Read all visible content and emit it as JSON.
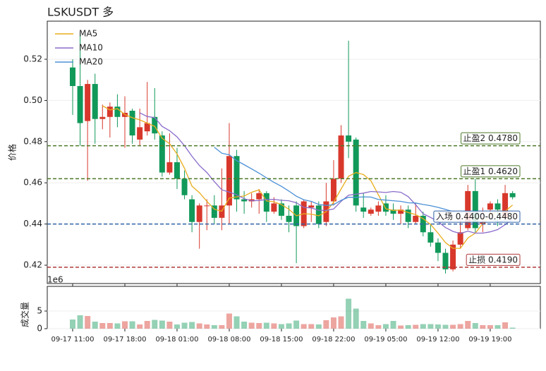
{
  "chart_data": [
    {
      "type": "candlestick",
      "title": "LSKUSDT  多",
      "ylabel": "价格",
      "up_color": "#d8382c",
      "down_color": "#11995a",
      "open": [
        0.516,
        0.507,
        0.49,
        0.508,
        0.491,
        0.492,
        0.497,
        0.492,
        0.495,
        0.481,
        0.485,
        0.492,
        0.483,
        0.465,
        0.47,
        0.462,
        0.452,
        0.441,
        0.449,
        0.449,
        0.443,
        0.449,
        0.473,
        0.452,
        0.451,
        0.452,
        0.455,
        0.446,
        0.45,
        0.444,
        0.449,
        0.439,
        0.448,
        0.449,
        0.441,
        0.451,
        0.462,
        0.483,
        0.481,
        0.448,
        0.445,
        0.446,
        0.45,
        0.447,
        0.445,
        0.447,
        0.441,
        0.444,
        0.436,
        0.431,
        0.426,
        0.418,
        0.43,
        0.438,
        0.456,
        0.44,
        0.447,
        0.45,
        0.443,
        0.455
      ],
      "high": [
        0.52,
        0.533,
        0.51,
        0.513,
        0.498,
        0.499,
        0.503,
        0.502,
        0.496,
        0.496,
        0.509,
        0.506,
        0.485,
        0.484,
        0.477,
        0.466,
        0.454,
        0.45,
        0.452,
        0.454,
        0.467,
        0.489,
        0.476,
        0.456,
        0.455,
        0.457,
        0.456,
        0.453,
        0.452,
        0.449,
        0.451,
        0.452,
        0.451,
        0.451,
        0.46,
        0.471,
        0.488,
        0.529,
        0.482,
        0.455,
        0.448,
        0.451,
        0.454,
        0.45,
        0.449,
        0.449,
        0.45,
        0.446,
        0.44,
        0.433,
        0.428,
        0.432,
        0.444,
        0.459,
        0.462,
        0.448,
        0.451,
        0.452,
        0.459,
        0.456
      ],
      "low": [
        0.493,
        0.478,
        0.461,
        0.479,
        0.486,
        0.482,
        0.487,
        0.477,
        0.479,
        0.478,
        0.483,
        0.481,
        0.463,
        0.464,
        0.457,
        0.452,
        0.436,
        0.428,
        0.437,
        0.44,
        0.437,
        0.44,
        0.446,
        0.445,
        0.448,
        0.445,
        0.441,
        0.445,
        0.442,
        0.436,
        0.421,
        0.438,
        0.441,
        0.438,
        0.439,
        0.449,
        0.46,
        0.472,
        0.446,
        0.443,
        0.444,
        0.444,
        0.444,
        0.442,
        0.44,
        0.438,
        0.44,
        0.434,
        0.429,
        0.422,
        0.416,
        0.417,
        0.428,
        0.437,
        0.436,
        0.436,
        0.443,
        0.439,
        0.442,
        0.452
      ],
      "close": [
        0.507,
        0.489,
        0.508,
        0.491,
        0.492,
        0.497,
        0.492,
        0.494,
        0.483,
        0.487,
        0.489,
        0.484,
        0.465,
        0.47,
        0.462,
        0.454,
        0.441,
        0.449,
        0.449,
        0.443,
        0.449,
        0.473,
        0.452,
        0.451,
        0.452,
        0.455,
        0.446,
        0.45,
        0.444,
        0.441,
        0.439,
        0.451,
        0.449,
        0.44,
        0.451,
        0.462,
        0.483,
        0.48,
        0.449,
        0.446,
        0.447,
        0.449,
        0.446,
        0.445,
        0.447,
        0.441,
        0.444,
        0.436,
        0.431,
        0.426,
        0.418,
        0.43,
        0.436,
        0.456,
        0.438,
        0.441,
        0.45,
        0.447,
        0.455,
        0.453
      ],
      "series": [
        {
          "name": "MA5",
          "color": "#e8ad1c",
          "values": [
            null,
            null,
            null,
            null,
            0.4974,
            0.4954,
            0.496,
            0.4932,
            0.4916,
            0.4906,
            0.489,
            0.4874,
            0.4816,
            0.479,
            0.474,
            0.467,
            0.4584,
            0.4552,
            0.451,
            0.4472,
            0.4462,
            0.4526,
            0.4532,
            0.4536,
            0.4554,
            0.4566,
            0.4512,
            0.4508,
            0.4494,
            0.4472,
            0.444,
            0.445,
            0.4448,
            0.444,
            0.446,
            0.4506,
            0.457,
            0.4632,
            0.465,
            0.464,
            0.461,
            0.4542,
            0.4474,
            0.4466,
            0.4468,
            0.4456,
            0.4446,
            0.4426,
            0.4398,
            0.4356,
            0.431,
            0.4282,
            0.4282,
            0.4332,
            0.4356,
            0.4402,
            0.4442,
            0.4464,
            0.4462,
            0.4492
          ]
        },
        {
          "name": "MA10",
          "color": "#8a6ccb",
          "values": [
            null,
            null,
            null,
            null,
            null,
            null,
            null,
            null,
            null,
            0.494,
            0.4922,
            0.4917,
            0.4874,
            0.4853,
            0.4823,
            0.478,
            0.4729,
            0.4684,
            0.465,
            0.4606,
            0.4566,
            0.4555,
            0.4542,
            0.4523,
            0.4513,
            0.4514,
            0.4519,
            0.452,
            0.4515,
            0.4513,
            0.4503,
            0.4481,
            0.4478,
            0.4467,
            0.4466,
            0.4473,
            0.451,
            0.454,
            0.4545,
            0.455,
            0.4558,
            0.4556,
            0.4553,
            0.4558,
            0.4554,
            0.4533,
            0.4494,
            0.445,
            0.4432,
            0.4412,
            0.4383,
            0.4364,
            0.4354,
            0.4365,
            0.4356,
            0.4356,
            0.4362,
            0.4373,
            0.4397,
            0.4424
          ]
        },
        {
          "name": "MA20",
          "color": "#4a90d6",
          "values": [
            null,
            null,
            null,
            null,
            null,
            null,
            null,
            null,
            null,
            null,
            null,
            null,
            null,
            null,
            null,
            null,
            null,
            null,
            null,
            0.4773,
            0.4744,
            0.4736,
            0.4708,
            0.4688,
            0.4668,
            0.4647,
            0.4624,
            0.4602,
            0.4583,
            0.456,
            0.4535,
            0.4518,
            0.451,
            0.4495,
            0.449,
            0.4494,
            0.4515,
            0.453,
            0.453,
            0.4532,
            0.4531,
            0.4519,
            0.4516,
            0.4513,
            0.451,
            0.4503,
            0.4502,
            0.4495,
            0.4489,
            0.4481,
            0.4471,
            0.446,
            0.4454,
            0.4462,
            0.4455,
            0.4445,
            0.4428,
            0.4412,
            0.4415,
            0.4418
          ]
        }
      ],
      "lines": [
        {
          "label": "止盈2 0.4780",
          "value": 0.478,
          "color": "#4d7a28"
        },
        {
          "label": "止盈1 0.4620",
          "value": 0.462,
          "color": "#4d7a28"
        },
        {
          "label": "入场 0.4400-0.4480",
          "value": 0.44,
          "color": "#2e62a8"
        },
        {
          "label": "止损 0.4190",
          "value": 0.419,
          "color": "#b03a3a"
        }
      ],
      "ylim": [
        0.4111,
        0.5385
      ],
      "yticks": [
        {
          "value": 0.42,
          "label": "0.42"
        },
        {
          "value": 0.44,
          "label": "0.44"
        },
        {
          "value": 0.46,
          "label": "0.46"
        },
        {
          "value": 0.48,
          "label": "0.48"
        },
        {
          "value": 0.5,
          "label": "0.50"
        },
        {
          "value": 0.52,
          "label": "0.52"
        }
      ],
      "grid": true,
      "legend": "upper left"
    },
    {
      "type": "bar",
      "ylabel": "成交量",
      "offset_label": "1e6",
      "categories": [
        "09-17 11:00",
        null,
        null,
        null,
        null,
        null,
        null,
        "09-17 18:00",
        null,
        null,
        null,
        null,
        null,
        null,
        "09-18 01:00",
        null,
        null,
        null,
        null,
        null,
        null,
        "09-18 08:00",
        null,
        null,
        null,
        null,
        null,
        null,
        "09-18 15:00",
        null,
        null,
        null,
        null,
        null,
        null,
        "09-18 22:00",
        null,
        null,
        null,
        null,
        null,
        null,
        "09-19 05:00",
        null,
        null,
        null,
        null,
        null,
        null,
        "09-19 12:00",
        null,
        null,
        null,
        null,
        null,
        null,
        "09-19 19:00",
        null,
        null,
        null
      ],
      "values": [
        2.6,
        3.8,
        3.6,
        2.0,
        1.6,
        1.6,
        1.5,
        2.1,
        2.1,
        1.2,
        2.2,
        2.5,
        2.3,
        2.0,
        1.2,
        1.7,
        1.9,
        1.5,
        1.2,
        1.0,
        1.0,
        4.3,
        3.5,
        2.0,
        1.7,
        1.6,
        1.7,
        1.5,
        1.3,
        1.5,
        2.3,
        1.3,
        1.3,
        1.2,
        2.4,
        3.2,
        3.5,
        8.5,
        5.7,
        2.2,
        1.5,
        1.0,
        1.3,
        2.2,
        0.9,
        1.0,
        1.1,
        1.3,
        1.3,
        1.2,
        1.1,
        1.1,
        1.3,
        2.2,
        1.6,
        1.0,
        1.0,
        1.0,
        1.8,
        0.3
      ],
      "ylim": [
        0,
        12
      ],
      "yticks": [
        0,
        5
      ],
      "grid": true
    }
  ]
}
